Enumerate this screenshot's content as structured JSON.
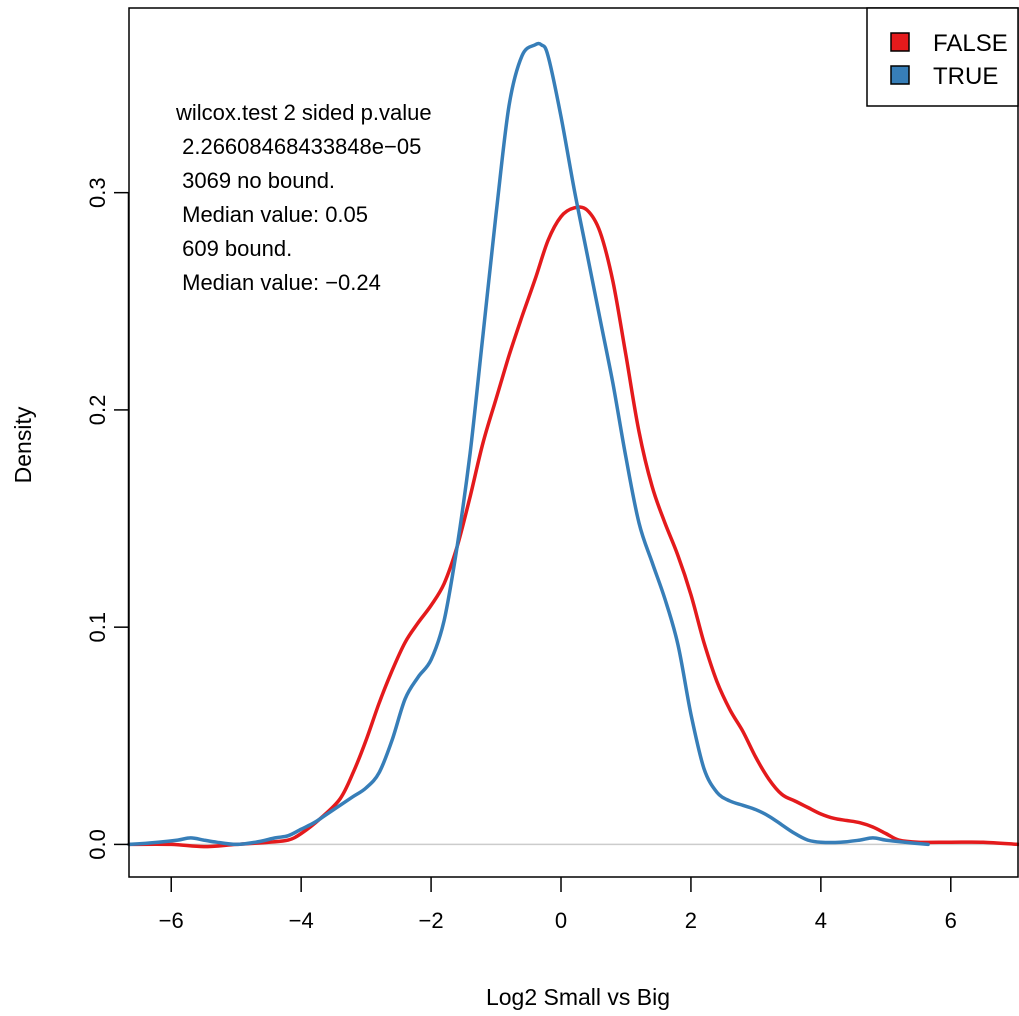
{
  "chart_data": {
    "type": "line",
    "title": "",
    "xlabel": "Log2 Small vs Big",
    "ylabel": "Density",
    "xlim": [
      -6.65,
      7.05
    ],
    "ylim": [
      -0.015,
      0.385
    ],
    "xticks": [
      -6,
      -4,
      -2,
      0,
      2,
      4,
      6
    ],
    "yticks": [
      0.0,
      0.1,
      0.2,
      0.3
    ],
    "xtick_labels": [
      "−6",
      "−4",
      "−2",
      "0",
      "2",
      "4",
      "6"
    ],
    "ytick_labels": [
      "0.0",
      "0.1",
      "0.2",
      "0.3"
    ],
    "grid": false,
    "baseline": 0,
    "legend": {
      "position": "top-right"
    },
    "annotation": [
      "wilcox.test 2 sided p.value",
      " 2.26608468433848e−05",
      " 3069 no bound.",
      " Median value: 0.05",
      " 609 bound.",
      " Median value: −0.24"
    ],
    "series": [
      {
        "name": "FALSE",
        "color": "#e41a1c",
        "points": [
          [
            -6.65,
            0.0
          ],
          [
            -6.0,
            0.0
          ],
          [
            -5.5,
            -0.001
          ],
          [
            -5.0,
            0.0
          ],
          [
            -4.5,
            0.001
          ],
          [
            -4.2,
            0.002
          ],
          [
            -4.0,
            0.005
          ],
          [
            -3.7,
            0.012
          ],
          [
            -3.4,
            0.021
          ],
          [
            -3.2,
            0.033
          ],
          [
            -3.0,
            0.048
          ],
          [
            -2.8,
            0.065
          ],
          [
            -2.6,
            0.08
          ],
          [
            -2.4,
            0.093
          ],
          [
            -2.2,
            0.102
          ],
          [
            -2.0,
            0.11
          ],
          [
            -1.8,
            0.12
          ],
          [
            -1.6,
            0.137
          ],
          [
            -1.4,
            0.16
          ],
          [
            -1.2,
            0.185
          ],
          [
            -1.0,
            0.205
          ],
          [
            -0.8,
            0.225
          ],
          [
            -0.6,
            0.243
          ],
          [
            -0.4,
            0.26
          ],
          [
            -0.2,
            0.278
          ],
          [
            0.0,
            0.289
          ],
          [
            0.2,
            0.293
          ],
          [
            0.4,
            0.292
          ],
          [
            0.6,
            0.282
          ],
          [
            0.8,
            0.259
          ],
          [
            1.0,
            0.225
          ],
          [
            1.2,
            0.19
          ],
          [
            1.4,
            0.165
          ],
          [
            1.6,
            0.148
          ],
          [
            1.8,
            0.133
          ],
          [
            2.0,
            0.115
          ],
          [
            2.2,
            0.093
          ],
          [
            2.4,
            0.075
          ],
          [
            2.6,
            0.062
          ],
          [
            2.8,
            0.052
          ],
          [
            3.0,
            0.04
          ],
          [
            3.2,
            0.03
          ],
          [
            3.4,
            0.023
          ],
          [
            3.6,
            0.02
          ],
          [
            3.8,
            0.017
          ],
          [
            4.0,
            0.014
          ],
          [
            4.2,
            0.012
          ],
          [
            4.4,
            0.011
          ],
          [
            4.6,
            0.01
          ],
          [
            4.8,
            0.008
          ],
          [
            5.0,
            0.005
          ],
          [
            5.2,
            0.002
          ],
          [
            5.5,
            0.001
          ],
          [
            6.0,
            0.001
          ],
          [
            6.5,
            0.001
          ],
          [
            7.05,
            0.0
          ]
        ]
      },
      {
        "name": "TRUE",
        "color": "#377eb8",
        "points": [
          [
            -6.65,
            0.0
          ],
          [
            -6.2,
            0.001
          ],
          [
            -5.9,
            0.002
          ],
          [
            -5.7,
            0.003
          ],
          [
            -5.5,
            0.002
          ],
          [
            -5.3,
            0.001
          ],
          [
            -5.0,
            0.0
          ],
          [
            -4.7,
            0.001
          ],
          [
            -4.4,
            0.003
          ],
          [
            -4.2,
            0.004
          ],
          [
            -4.0,
            0.007
          ],
          [
            -3.8,
            0.01
          ],
          [
            -3.6,
            0.014
          ],
          [
            -3.4,
            0.018
          ],
          [
            -3.2,
            0.022
          ],
          [
            -3.0,
            0.026
          ],
          [
            -2.8,
            0.033
          ],
          [
            -2.6,
            0.048
          ],
          [
            -2.4,
            0.067
          ],
          [
            -2.2,
            0.077
          ],
          [
            -2.0,
            0.085
          ],
          [
            -1.8,
            0.103
          ],
          [
            -1.6,
            0.137
          ],
          [
            -1.4,
            0.18
          ],
          [
            -1.2,
            0.235
          ],
          [
            -1.0,
            0.29
          ],
          [
            -0.8,
            0.34
          ],
          [
            -0.6,
            0.363
          ],
          [
            -0.4,
            0.368
          ],
          [
            -0.3,
            0.368
          ],
          [
            -0.2,
            0.363
          ],
          [
            0.0,
            0.335
          ],
          [
            0.2,
            0.302
          ],
          [
            0.4,
            0.272
          ],
          [
            0.6,
            0.242
          ],
          [
            0.8,
            0.212
          ],
          [
            1.0,
            0.178
          ],
          [
            1.2,
            0.148
          ],
          [
            1.4,
            0.13
          ],
          [
            1.6,
            0.113
          ],
          [
            1.8,
            0.092
          ],
          [
            2.0,
            0.06
          ],
          [
            2.2,
            0.035
          ],
          [
            2.4,
            0.024
          ],
          [
            2.6,
            0.02
          ],
          [
            2.8,
            0.018
          ],
          [
            3.0,
            0.016
          ],
          [
            3.2,
            0.013
          ],
          [
            3.4,
            0.009
          ],
          [
            3.6,
            0.005
          ],
          [
            3.8,
            0.002
          ],
          [
            4.0,
            0.001
          ],
          [
            4.3,
            0.001
          ],
          [
            4.6,
            0.002
          ],
          [
            4.8,
            0.003
          ],
          [
            5.0,
            0.002
          ],
          [
            5.3,
            0.001
          ],
          [
            5.65,
            0.0
          ]
        ]
      }
    ]
  }
}
